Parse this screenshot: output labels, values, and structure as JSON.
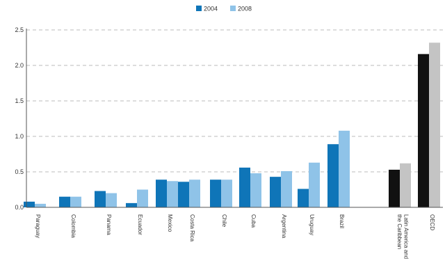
{
  "chart_data": {
    "type": "bar",
    "title": "",
    "xlabel": "",
    "ylabel": "",
    "ylim": [
      0,
      2.5
    ],
    "yticks": [
      "0.0",
      "0.5",
      "1.0",
      "1.5",
      "2.0",
      "2.5"
    ],
    "legend_position": "top-center",
    "categories": [
      "Paraguay",
      "Colombia",
      "Panama",
      "Ecuador",
      "Mexico",
      "Costa Rica",
      "Chile",
      "Cuba",
      "Argentina",
      "Uruguay",
      "Brazil",
      "Latin America and the Caribbean",
      "OECD"
    ],
    "category_label_lines": [
      [
        "Paraguay"
      ],
      [
        "Colombia"
      ],
      [
        "Panama"
      ],
      [
        "Ecuador"
      ],
      [
        "Mexico"
      ],
      [
        "Costa Rica"
      ],
      [
        "Chile"
      ],
      [
        "Cuba"
      ],
      [
        "Argentina"
      ],
      [
        "Uruguay"
      ],
      [
        "Brazil"
      ],
      [
        "Latin America and",
        "the Caribbean"
      ],
      [
        "OECD"
      ]
    ],
    "series": [
      {
        "name": "2004",
        "values": [
          0.08,
          0.15,
          0.23,
          0.06,
          0.39,
          0.36,
          0.39,
          0.56,
          0.43,
          0.26,
          0.89,
          0.53,
          2.16
        ]
      },
      {
        "name": "2008",
        "values": [
          0.05,
          0.15,
          0.2,
          0.25,
          0.37,
          0.39,
          0.39,
          0.48,
          0.51,
          0.63,
          1.08,
          0.62,
          2.32
        ]
      }
    ],
    "colors": {
      "series_2004": "#0f75b8",
      "series_2008": "#8fc3e8",
      "aggregate_2004": "#111111",
      "aggregate_2008": "#c4c4c4",
      "grid": "#bbbbbb",
      "axis": "#555555"
    },
    "aggregate_categories": [
      "Latin America and the Caribbean",
      "OECD"
    ]
  }
}
